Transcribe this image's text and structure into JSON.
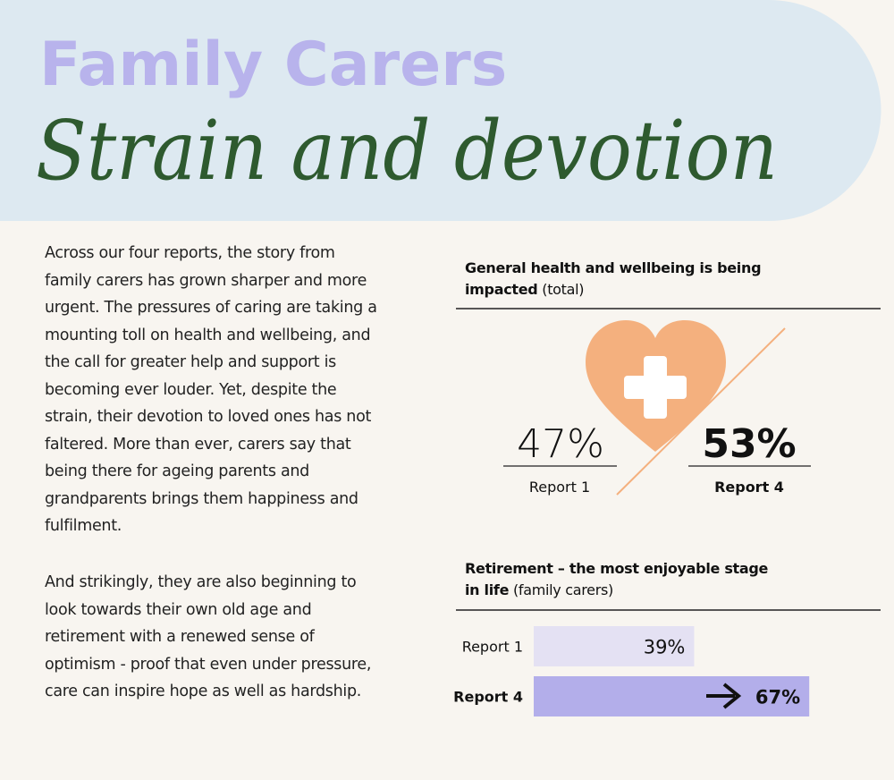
{
  "header": {
    "kicker": "Family Carers",
    "title": "Strain and devotion"
  },
  "body": {
    "paragraphs": [
      "Across our four reports, the story from family carers has grown sharper and more urgent. The pressures of caring are taking a mounting toll on health and wellbeing, and the call for greater help and support is becoming ever louder. Yet, despite the strain, their devotion to loved ones has not faltered. More than ever, carers say that being there for ageing parents and grandparents brings them happiness and fulfilment.",
      "And strikingly, they are also beginning to look towards their own old age and retirement with a renewed sense of optimism - proof that even under pressure, care can inspire hope as well as hardship."
    ]
  },
  "health": {
    "title": "General health and wellbeing is being impacted",
    "note": "(total)",
    "stats": [
      {
        "value": "47%",
        "label": "Report 1"
      },
      {
        "value": "53%",
        "label": "Report 4"
      }
    ]
  },
  "chart_data": {
    "type": "bar",
    "orientation": "horizontal",
    "title": "Retirement – the most enjoyable stage in life",
    "subtitle": "(family carers)",
    "categories": [
      "Report 1",
      "Report 4"
    ],
    "values": [
      39,
      67
    ],
    "value_labels": [
      "39%",
      "67%"
    ],
    "colors": [
      "#e4e1f3",
      "#b3aeea"
    ]
  }
}
